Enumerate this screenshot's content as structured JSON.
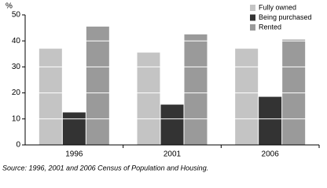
{
  "chart_data": {
    "type": "bar",
    "y_label": "%",
    "categories": [
      "1996",
      "2001",
      "2006"
    ],
    "series": [
      {
        "name": "Fully owned",
        "color": "#c4c4c4",
        "values": [
          37,
          35.5,
          37
        ]
      },
      {
        "name": "Being purchased",
        "color": "#333333",
        "values": [
          12.5,
          15.5,
          18.5
        ]
      },
      {
        "name": "Rented",
        "color": "#9a9a9a",
        "values": [
          45.5,
          42.5,
          40.5
        ]
      }
    ],
    "ylim": [
      0,
      50
    ],
    "yticks": [
      0,
      10,
      20,
      30,
      40,
      50
    ],
    "grid": true,
    "legend": "top-right",
    "source": "Source: 1996, 2001 and 2006 Census of Population and Housing."
  }
}
